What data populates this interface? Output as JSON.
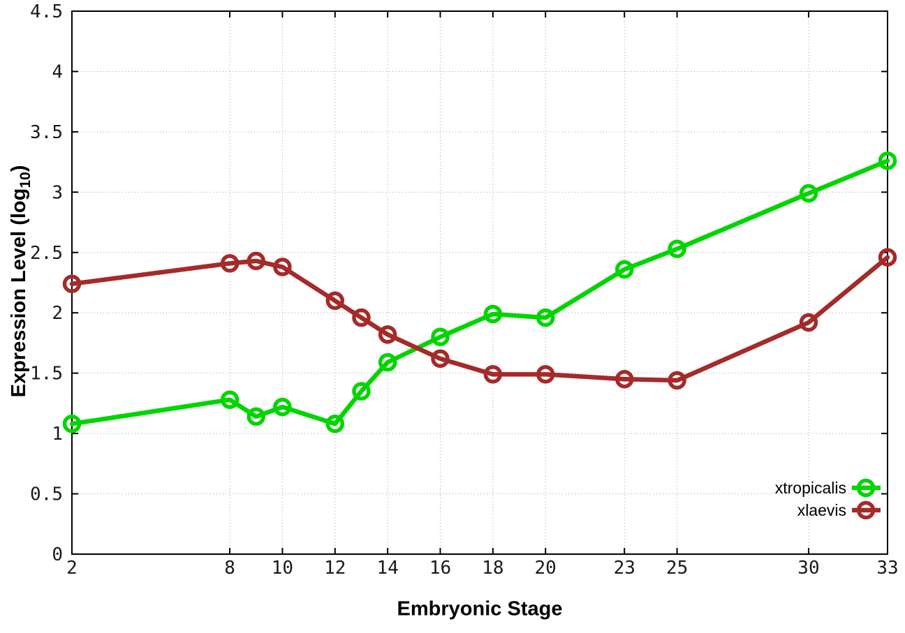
{
  "chart_data": {
    "type": "line",
    "title": "",
    "xlabel": "Embryonic Stage",
    "ylabel": "Expression Level (log10)",
    "ylabel_parts": {
      "main": "Expression Level (log",
      "sub": "10",
      "close": ")"
    },
    "xlim": [
      2,
      33
    ],
    "ylim": [
      0,
      4.5
    ],
    "xticks": [
      2,
      8,
      10,
      12,
      14,
      16,
      18,
      20,
      23,
      25,
      30,
      33
    ],
    "yticks": [
      0,
      0.5,
      1,
      1.5,
      2,
      2.5,
      3,
      3.5,
      4,
      4.5
    ],
    "grid": true,
    "legend_position": "inside bottom-right",
    "background": "#ffffff",
    "marker": "open-circle",
    "x": [
      2,
      8,
      9,
      10,
      12,
      13,
      14,
      16,
      18,
      20,
      23,
      25,
      30,
      33
    ],
    "series": [
      {
        "name": "xtropicalis",
        "color": "#00d500",
        "values": [
          1.08,
          1.28,
          1.14,
          1.22,
          1.08,
          1.35,
          1.59,
          1.8,
          1.99,
          1.96,
          2.36,
          2.53,
          2.99,
          3.26
        ]
      },
      {
        "name": "xlaevis",
        "color": "#a52a2a",
        "values": [
          2.24,
          2.41,
          2.43,
          2.38,
          2.1,
          1.96,
          1.82,
          1.62,
          1.49,
          1.49,
          1.45,
          1.44,
          1.92,
          2.46
        ]
      }
    ]
  }
}
